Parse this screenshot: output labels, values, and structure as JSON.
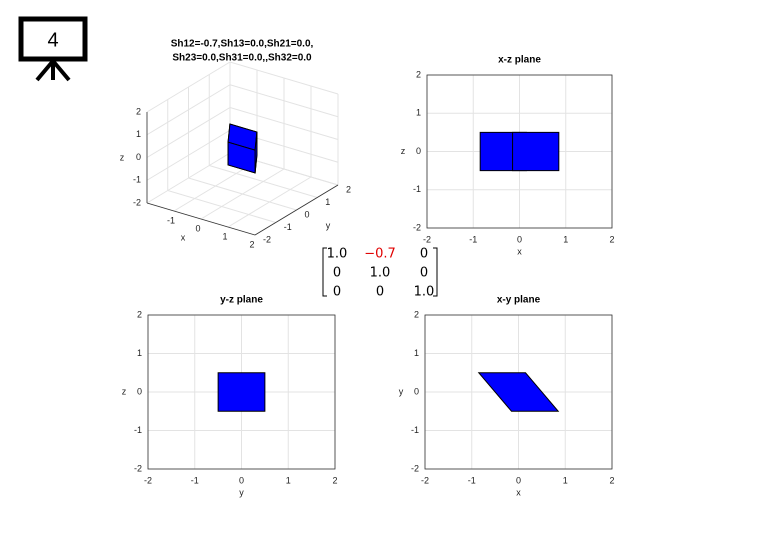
{
  "slide_number": "4",
  "matrix": {
    "rows": [
      [
        "1.0",
        "−0.7",
        "0"
      ],
      [
        "0",
        "1.0",
        "0"
      ],
      [
        "0",
        "0",
        "1.0"
      ]
    ]
  },
  "chart_data": [
    {
      "type": "patch3d",
      "title": [
        "Sh12=-0.7,Sh13=0.0,Sh21=0.0,",
        "Sh23=0.0,Sh31=0.0,,Sh32=0.0"
      ],
      "xlabel": "x",
      "ylabel": "y",
      "zlabel": "z",
      "xlim": [
        -2,
        2
      ],
      "ylim": [
        -2,
        2
      ],
      "zlim": [
        -2,
        2
      ],
      "xticks": [
        -1,
        0,
        1,
        2
      ],
      "yticks": [
        -2,
        -1,
        0,
        1,
        2
      ],
      "zticks": [
        -2,
        -1,
        0,
        1,
        2
      ],
      "grid": true,
      "color": "#0000ff",
      "faces": [
        {
          "x": [
            -0.15,
            0.85,
            0.15,
            -0.85
          ],
          "y": [
            -0.5,
            -0.5,
            0.5,
            0.5
          ],
          "z": [
            -0.5,
            -0.5,
            -0.5,
            -0.5
          ]
        },
        {
          "x": [
            -0.85,
            0.15,
            0.15,
            -0.85
          ],
          "y": [
            0.5,
            0.5,
            0.5,
            0.5
          ],
          "z": [
            -0.5,
            -0.5,
            0.5,
            0.5
          ]
        },
        {
          "x": [
            -0.15,
            -0.85,
            -0.85,
            -0.15
          ],
          "y": [
            -0.5,
            0.5,
            0.5,
            -0.5
          ],
          "z": [
            -0.5,
            -0.5,
            0.5,
            0.5
          ]
        },
        {
          "x": [
            0.85,
            0.15,
            0.15,
            0.85
          ],
          "y": [
            -0.5,
            0.5,
            0.5,
            -0.5
          ],
          "z": [
            -0.5,
            -0.5,
            0.5,
            0.5
          ]
        },
        {
          "x": [
            -0.15,
            0.85,
            0.85,
            -0.15
          ],
          "y": [
            -0.5,
            -0.5,
            -0.5,
            -0.5
          ],
          "z": [
            -0.5,
            -0.5,
            0.5,
            0.5
          ]
        },
        {
          "x": [
            -0.15,
            0.85,
            0.15,
            -0.85
          ],
          "y": [
            -0.5,
            -0.5,
            0.5,
            0.5
          ],
          "z": [
            0.5,
            0.5,
            0.5,
            0.5
          ]
        }
      ]
    },
    {
      "type": "polygon",
      "title": "x-z plane",
      "xlabel": "x",
      "ylabel": "z",
      "xlim": [
        -2,
        2
      ],
      "ylim": [
        -2,
        2
      ],
      "xticks": [
        -2,
        -1,
        0,
        1,
        2
      ],
      "yticks": [
        -2,
        -1,
        0,
        1,
        2
      ],
      "grid": true,
      "color": "#0000ff",
      "series": [
        {
          "x": [
            -0.85,
            0.15,
            0.15,
            -0.85
          ],
          "values": [
            -0.5,
            -0.5,
            0.5,
            0.5
          ]
        },
        {
          "x": [
            -0.15,
            0.85,
            0.85,
            -0.15
          ],
          "values": [
            -0.5,
            -0.5,
            0.5,
            0.5
          ]
        }
      ]
    },
    {
      "type": "polygon",
      "title": "y-z plane",
      "xlabel": "y",
      "ylabel": "z",
      "xlim": [
        -2,
        2
      ],
      "ylim": [
        -2,
        2
      ],
      "xticks": [
        -2,
        -1,
        0,
        1,
        2
      ],
      "yticks": [
        -2,
        -1,
        0,
        1,
        2
      ],
      "grid": true,
      "color": "#0000ff",
      "series": [
        {
          "x": [
            -0.5,
            0.5,
            0.5,
            -0.5
          ],
          "values": [
            -0.5,
            -0.5,
            0.5,
            0.5
          ]
        }
      ]
    },
    {
      "type": "polygon",
      "title": "x-y plane",
      "xlabel": "x",
      "ylabel": "y",
      "xlim": [
        -2,
        2
      ],
      "ylim": [
        -2,
        2
      ],
      "xticks": [
        -2,
        -1,
        0,
        1,
        2
      ],
      "yticks": [
        -2,
        -1,
        0,
        1,
        2
      ],
      "grid": true,
      "color": "#0000ff",
      "series": [
        {
          "x": [
            -0.85,
            0.15,
            0.85,
            -0.15
          ],
          "values": [
            0.5,
            0.5,
            -0.5,
            -0.5
          ]
        }
      ]
    }
  ]
}
